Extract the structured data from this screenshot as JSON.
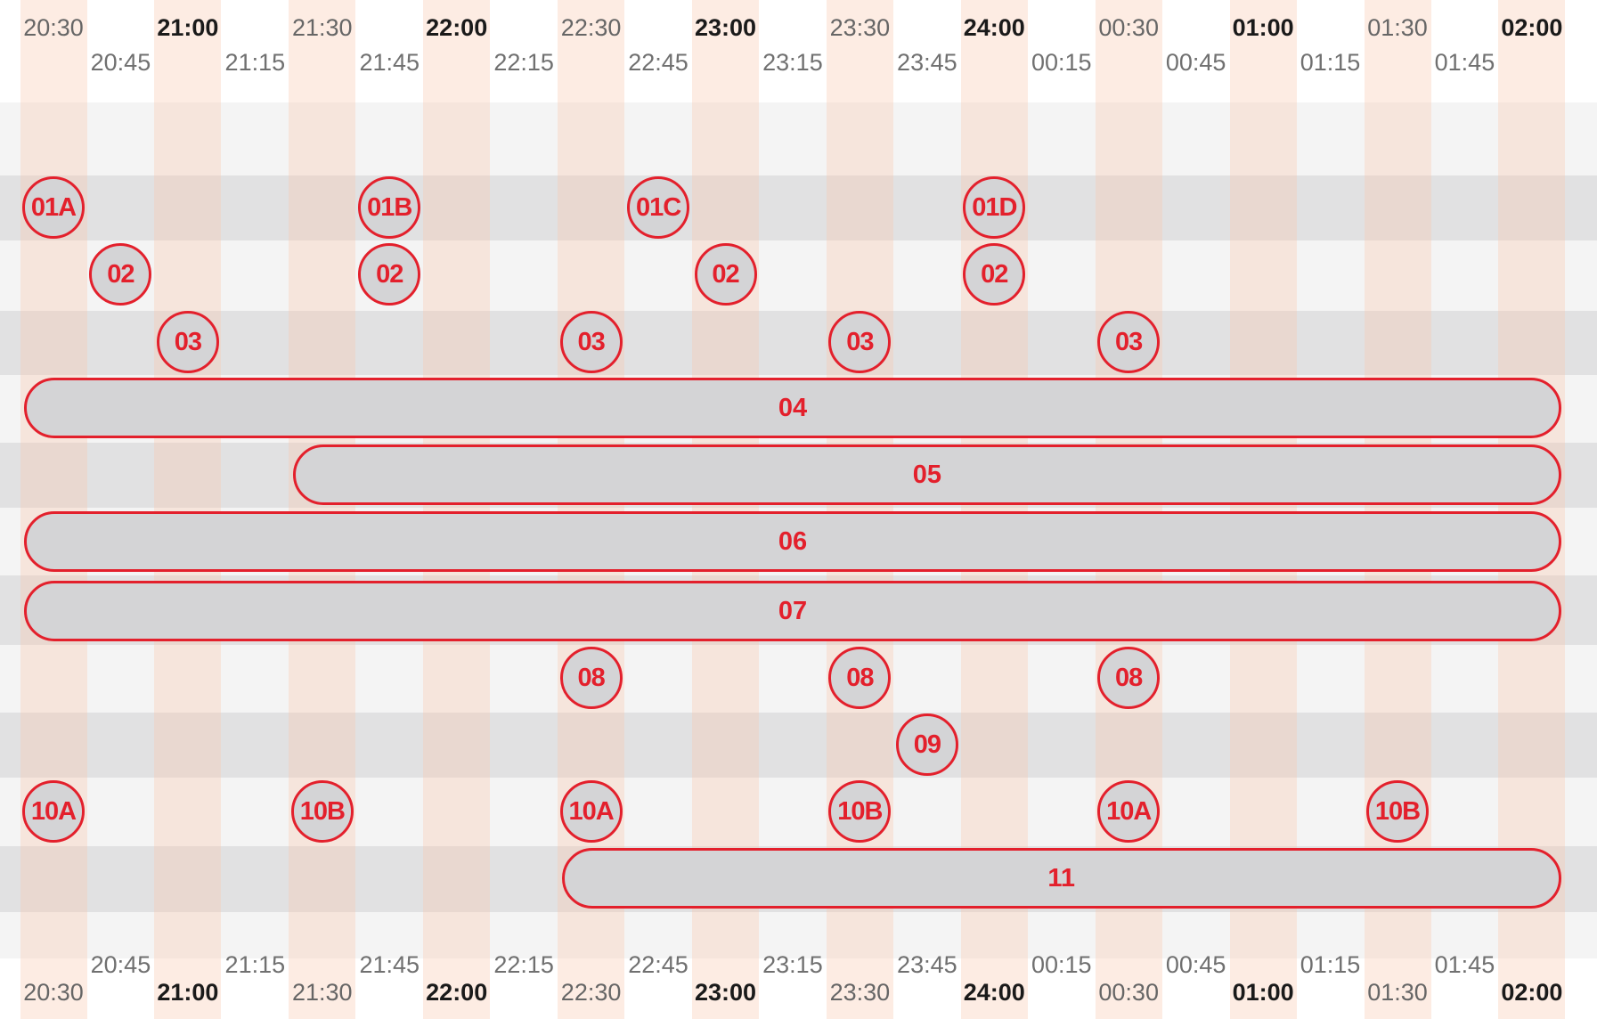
{
  "top_major_labels": [
    {
      "text": "20:30",
      "bold": false
    },
    {
      "text": "21:00",
      "bold": true
    },
    {
      "text": "21:30",
      "bold": false
    },
    {
      "text": "22:00",
      "bold": true
    },
    {
      "text": "22:30",
      "bold": false
    },
    {
      "text": "23:00",
      "bold": true
    },
    {
      "text": "23:30",
      "bold": false
    },
    {
      "text": "24:00",
      "bold": true
    },
    {
      "text": "00:30",
      "bold": false
    },
    {
      "text": "01:00",
      "bold": true
    },
    {
      "text": "01:30",
      "bold": false
    },
    {
      "text": "02:00",
      "bold": true
    }
  ],
  "top_quarter_labels": [
    "20:45",
    "21:15",
    "21:45",
    "22:15",
    "22:45",
    "23:15",
    "23:45",
    "00:15",
    "00:45",
    "01:15",
    "01:45"
  ],
  "bottom_quarter_labels": [
    "20:45",
    "21:15",
    "21:45",
    "22:15",
    "22:45",
    "23:15",
    "23:45",
    "00:15",
    "00:45",
    "01:15",
    "01:45"
  ],
  "bottom_major_labels": [
    {
      "text": "20:30",
      "bold": false
    },
    {
      "text": "21:00",
      "bold": true
    },
    {
      "text": "21:30",
      "bold": false
    },
    {
      "text": "22:00",
      "bold": true
    },
    {
      "text": "22:30",
      "bold": false
    },
    {
      "text": "23:00",
      "bold": true
    },
    {
      "text": "23:30",
      "bold": false
    },
    {
      "text": "24:00",
      "bold": true
    },
    {
      "text": "00:30",
      "bold": false
    },
    {
      "text": "01:00",
      "bold": true
    },
    {
      "text": "01:30",
      "bold": false
    },
    {
      "text": "02:00",
      "bold": true
    }
  ],
  "colors": {
    "accent_red": "#e3202c",
    "fill_gray": "#d4d4d6",
    "row_light": "#f4f4f4",
    "row_dark": "#e1e1e2",
    "column_peach": "#f9d9c8"
  },
  "events": [
    {
      "label": "01A",
      "row": 1,
      "shape": "circle",
      "time": "20:30"
    },
    {
      "label": "01B",
      "row": 1,
      "shape": "circle",
      "time": "21:45"
    },
    {
      "label": "01C",
      "row": 1,
      "shape": "circle",
      "time": "22:45"
    },
    {
      "label": "01D",
      "row": 1,
      "shape": "circle",
      "time": "24:00"
    },
    {
      "label": "02",
      "row": 2,
      "shape": "circle",
      "time": "20:45"
    },
    {
      "label": "02",
      "row": 2,
      "shape": "circle",
      "time": "21:45"
    },
    {
      "label": "02",
      "row": 2,
      "shape": "circle",
      "time": "23:00"
    },
    {
      "label": "02",
      "row": 2,
      "shape": "circle",
      "time": "24:00"
    },
    {
      "label": "03",
      "row": 3,
      "shape": "circle",
      "time": "21:00"
    },
    {
      "label": "03",
      "row": 3,
      "shape": "circle",
      "time": "22:30"
    },
    {
      "label": "03",
      "row": 3,
      "shape": "circle",
      "time": "23:30"
    },
    {
      "label": "03",
      "row": 3,
      "shape": "circle",
      "time": "00:30"
    },
    {
      "label": "04",
      "row": 4,
      "shape": "bar",
      "start": "20:30",
      "end": "02:00"
    },
    {
      "label": "05",
      "row": 5,
      "shape": "bar",
      "start": "21:30",
      "end": "02:00"
    },
    {
      "label": "06",
      "row": 6,
      "shape": "bar",
      "start": "20:30",
      "end": "02:00"
    },
    {
      "label": "07",
      "row": 7,
      "shape": "bar",
      "start": "20:30",
      "end": "02:00"
    },
    {
      "label": "08",
      "row": 8,
      "shape": "circle",
      "time": "22:30"
    },
    {
      "label": "08",
      "row": 8,
      "shape": "circle",
      "time": "23:30"
    },
    {
      "label": "08",
      "row": 8,
      "shape": "circle",
      "time": "00:30"
    },
    {
      "label": "09",
      "row": 9,
      "shape": "circle",
      "time": "23:45"
    },
    {
      "label": "10A",
      "row": 10,
      "shape": "circle",
      "time": "20:30"
    },
    {
      "label": "10B",
      "row": 10,
      "shape": "circle",
      "time": "21:30"
    },
    {
      "label": "10A",
      "row": 10,
      "shape": "circle",
      "time": "22:30"
    },
    {
      "label": "10B",
      "row": 10,
      "shape": "circle",
      "time": "23:30"
    },
    {
      "label": "10A",
      "row": 10,
      "shape": "circle",
      "time": "00:30"
    },
    {
      "label": "10B",
      "row": 10,
      "shape": "circle",
      "time": "01:30"
    },
    {
      "label": "11",
      "row": 11,
      "shape": "bar",
      "start": "22:30",
      "end": "02:00"
    }
  ]
}
